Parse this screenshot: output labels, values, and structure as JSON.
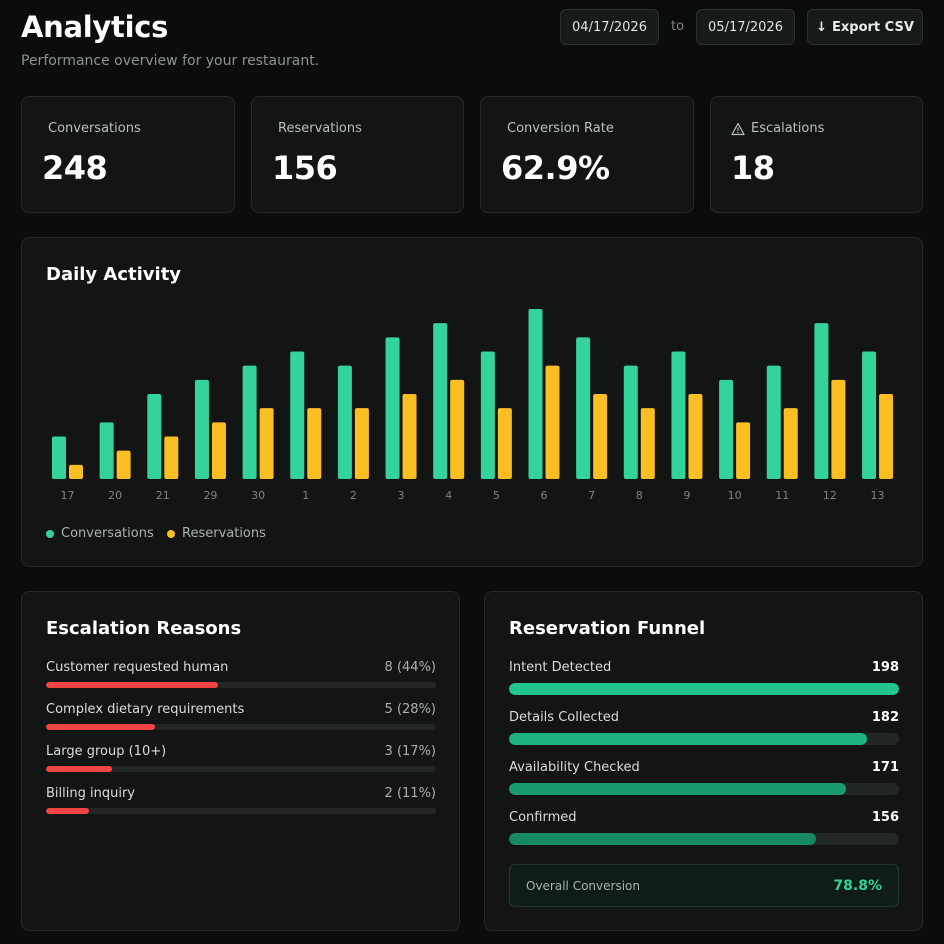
{
  "header": {
    "title": "Analytics",
    "subtitle": "Performance overview for your restaurant.",
    "date_from": "04/17/2026",
    "date_separator": "to",
    "date_to": "05/17/2026",
    "export_label": "Export CSV",
    "export_icon": "download-arrow-icon"
  },
  "stats": [
    {
      "label": "Conversations",
      "value": "248"
    },
    {
      "label": "Reservations",
      "value": "156"
    },
    {
      "label": "Conversion Rate",
      "value": "62.9%"
    },
    {
      "label": "Escalations",
      "value": "18",
      "icon": "warning-icon"
    }
  ],
  "colors": {
    "conversations": "#34d399",
    "reservations": "#fbbf24",
    "escalation_bar": "#ef4444",
    "funnel_bar": "#22c58b",
    "overall_conversion": "#34d399"
  },
  "chart_data": {
    "type": "bar",
    "title": "Daily Activity",
    "categories": [
      "17",
      "20",
      "21",
      "29",
      "30",
      "1",
      "2",
      "3",
      "4",
      "5",
      "6",
      "7",
      "8",
      "9",
      "10",
      "11",
      "12",
      "13"
    ],
    "series": [
      {
        "name": "Conversations",
        "values": [
          3,
          4,
          6,
          7,
          8,
          9,
          8,
          10,
          11,
          9,
          12,
          10,
          8,
          9,
          7,
          8,
          11,
          9
        ]
      },
      {
        "name": "Reservations",
        "values": [
          1,
          2,
          3,
          4,
          5,
          5,
          5,
          6,
          7,
          5,
          8,
          6,
          5,
          6,
          4,
          5,
          7,
          6
        ]
      }
    ],
    "ylim": [
      0,
      12
    ],
    "legend_position": "bottom-left",
    "grid": false
  },
  "escalations": {
    "title": "Escalation Reasons",
    "items": [
      {
        "label": "Customer requested human",
        "value": "8 (44%)",
        "pct": 44
      },
      {
        "label": "Complex dietary requirements",
        "value": "5 (28%)",
        "pct": 28
      },
      {
        "label": "Large group (10+)",
        "value": "3 (17%)",
        "pct": 17
      },
      {
        "label": "Billing inquiry",
        "value": "2 (11%)",
        "pct": 11
      }
    ]
  },
  "funnel": {
    "title": "Reservation Funnel",
    "items": [
      {
        "label": "Intent Detected",
        "value": "198",
        "count": 198
      },
      {
        "label": "Details Collected",
        "value": "182",
        "count": 182
      },
      {
        "label": "Availability Checked",
        "value": "171",
        "count": 171
      },
      {
        "label": "Confirmed",
        "value": "156",
        "count": 156
      }
    ],
    "overall_label": "Overall Conversion",
    "overall_value": "78.8%"
  }
}
